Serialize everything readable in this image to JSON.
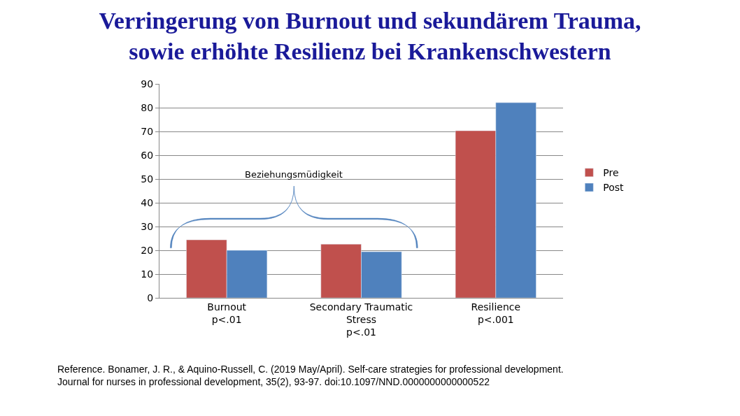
{
  "chart_data": {
    "type": "bar",
    "title": "Verringerung von Burnout und sekundärem Trauma,\nsowie erhöhte Resilienz bei Krankenschwestern",
    "categories": [
      "Burnout\np<.01",
      "Secondary Traumatic\nStress\np<.01",
      "Resilience\np<.001"
    ],
    "series": [
      {
        "name": "Pre",
        "color": "#c0504d",
        "values": [
          24.4,
          22.6,
          70.3
        ]
      },
      {
        "name": "Post",
        "color": "#4f81bd",
        "values": [
          20.0,
          19.4,
          82.1
        ]
      }
    ],
    "ylim": [
      0,
      90
    ],
    "yticks": [
      0,
      10,
      20,
      30,
      40,
      50,
      60,
      70,
      80,
      90
    ],
    "grid": "y",
    "legend": "right",
    "annotations": [
      "Beziehungsmüdigkeit",
      "Reference. Bonamer, J. R., & Aquino-Russell, C. (2019 May/April). Self-care strategies for professional development.\nJournal for nurses in professional development, 35(2), 93-97. doi:10.1097/NND.0000000000000522"
    ]
  }
}
